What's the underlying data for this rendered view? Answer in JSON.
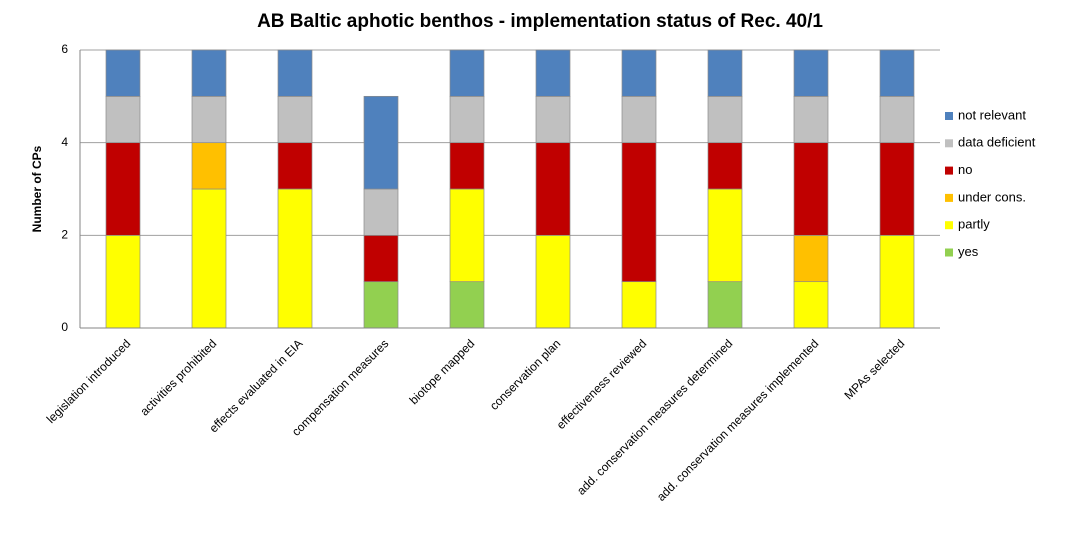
{
  "chart_data": {
    "type": "stacked_bar",
    "title": "AB Baltic aphotic benthos - implementation status of Rec. 40/1",
    "y_label": "Number of CPs",
    "categories": [
      "legislation introduced",
      "activities prohibited",
      "effects evaluated in EIA",
      "compensation measures",
      "biotope mapped",
      "conservation plan",
      "effectiveness reviewed",
      "add. conservation measures determined",
      "add. conservation measures implemented",
      "MPAs selected"
    ],
    "series": [
      {
        "name": "yes",
        "color": "#92d050",
        "values": [
          0,
          0,
          0,
          1,
          1,
          0,
          0,
          1,
          0,
          0
        ]
      },
      {
        "name": "partly",
        "color": "#ffff00",
        "values": [
          2,
          3,
          3,
          0,
          2,
          2,
          1,
          2,
          1,
          2
        ]
      },
      {
        "name": "under cons.",
        "color": "#ffc000",
        "values": [
          0,
          1,
          0,
          0,
          0,
          0,
          0,
          0,
          1,
          0
        ]
      },
      {
        "name": "no",
        "color": "#c00000",
        "values": [
          2,
          0,
          1,
          1,
          1,
          2,
          3,
          1,
          2,
          2
        ]
      },
      {
        "name": "data deficient",
        "color": "#c0c0c0",
        "values": [
          1,
          1,
          1,
          1,
          1,
          1,
          1,
          1,
          1,
          1
        ]
      },
      {
        "name": "not relevant",
        "color": "#4f81bd",
        "values": [
          1,
          1,
          1,
          2,
          1,
          1,
          1,
          1,
          1,
          1
        ]
      }
    ],
    "ylim": [
      0,
      6
    ],
    "yticks": [
      0,
      2,
      4,
      6
    ],
    "grid": true,
    "legend": "right"
  }
}
